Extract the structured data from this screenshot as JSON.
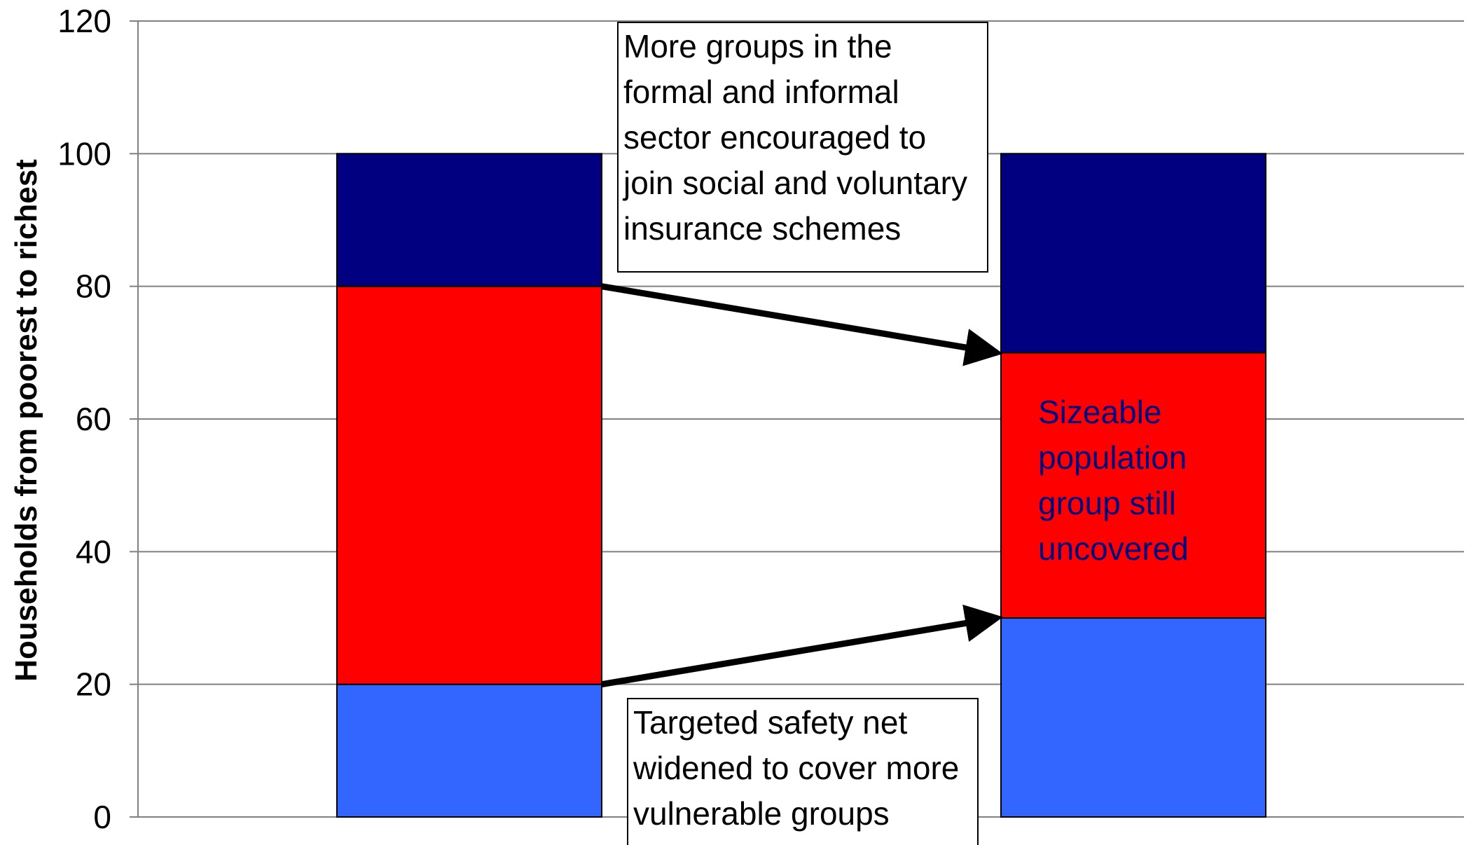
{
  "chart_data": {
    "type": "bar",
    "stacked": true,
    "categories": [
      "",
      ""
    ],
    "series": [
      {
        "values": [
          20,
          30
        ],
        "color": "#3366ff"
      },
      {
        "values": [
          60,
          40
        ],
        "color": "#ff0000"
      },
      {
        "values": [
          20,
          30
        ],
        "color": "#000080"
      }
    ],
    "ylabel": "Households from poorest to richest",
    "ylim": [
      0,
      120
    ],
    "yticks": [
      0,
      20,
      40,
      60,
      80,
      100,
      120
    ],
    "grid": true,
    "annotations": {
      "top_box": [
        "More groups in the",
        "formal and informal",
        "sector encouraged to",
        "join social and voluntary",
        "insurance schemes"
      ],
      "bottom_box": [
        "Targeted safety net",
        "widened to cover more",
        "vulnerable groups"
      ],
      "center_label": [
        "Sizeable",
        "population",
        "group still",
        "uncovered"
      ]
    },
    "arrows": [
      {
        "from": {
          "category": 0,
          "y": 80
        },
        "to": {
          "category": 1,
          "y": 70
        }
      },
      {
        "from": {
          "category": 0,
          "y": 20
        },
        "to": {
          "category": 1,
          "y": 30
        }
      }
    ]
  }
}
